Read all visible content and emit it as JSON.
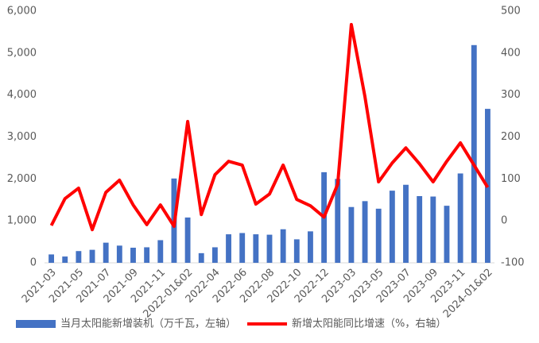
{
  "chart_data": {
    "type": "bar-line",
    "categories": [
      "2021-03",
      null,
      "2021-05",
      null,
      "2021-07",
      null,
      "2021-09",
      null,
      "2021-11",
      null,
      "2022-01&02",
      null,
      "2022-04",
      null,
      "2022-06",
      null,
      "2022-08",
      null,
      "2022-10",
      null,
      "2022-12",
      null,
      "2023-03",
      null,
      "2023-05",
      null,
      "2023-07",
      null,
      "2023-09",
      null,
      "2023-11",
      null,
      "2024-01&02"
    ],
    "series": [
      {
        "name": "当月太阳能新增装机（万千瓦，左轴）",
        "type": "bar",
        "color": "#4472c4",
        "values": [
          200,
          150,
          280,
          310,
          480,
          410,
          360,
          370,
          540,
          2010,
          1080,
          230,
          370,
          680,
          710,
          680,
          670,
          800,
          560,
          750,
          2160,
          2000,
          1330,
          1470,
          1290,
          1720,
          1860,
          1590,
          1580,
          1360,
          2130,
          5190,
          3670
        ]
      },
      {
        "name": "新增太阳能同比增速（%，右轴）",
        "type": "line",
        "axis": "y2",
        "color": "#ff0000",
        "values": [
          -11,
          53,
          78,
          -21,
          68,
          97,
          38,
          -9,
          38,
          -13,
          237,
          15,
          110,
          142,
          133,
          40,
          64,
          133,
          51,
          36,
          9,
          87,
          468,
          296,
          93,
          138,
          174,
          136,
          93,
          142,
          186,
          133,
          80
        ]
      }
    ],
    "ylim": [
      0,
      6000
    ],
    "yticks": [
      0,
      {
        "value": 1000,
        "label": "1,000"
      },
      {
        "value": 2000,
        "label": "2,000"
      },
      {
        "value": 3000,
        "label": "3,000"
      },
      {
        "value": 4000,
        "label": "4,000"
      },
      {
        "value": 5000,
        "label": "5,000"
      },
      {
        "value": 6000,
        "label": "6,000"
      }
    ],
    "y2lim": [
      -100,
      500
    ],
    "y2ticks": [
      -100,
      0,
      100,
      200,
      300,
      400,
      500
    ]
  }
}
